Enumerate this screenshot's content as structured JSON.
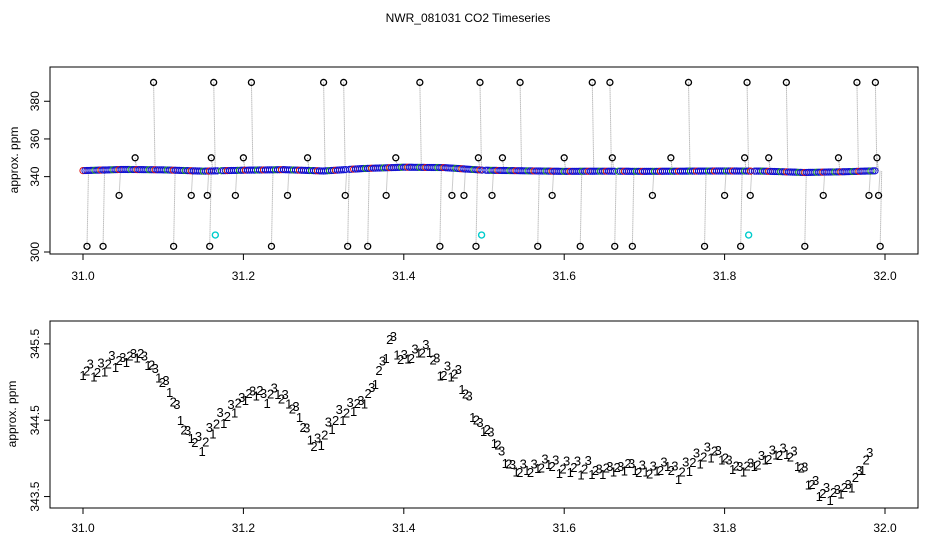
{
  "title": "NWR_081031  CO2 Timeseries",
  "colors": {
    "frame": "#000000",
    "primary": "#1010d0",
    "secondary": "#1aa01a",
    "tertiary": "#dd1010",
    "outlier": "#000000",
    "flag": "#00cccc",
    "connector": "#9a9a9a"
  },
  "chart_data": [
    {
      "type": "scatter",
      "name": "top-panel",
      "ylabel": "approx. ppm",
      "xlim": [
        31.0,
        32.0
      ],
      "ylim": [
        300,
        395
      ],
      "x_ticks": [
        "31.0",
        "31.2",
        "31.4",
        "31.6",
        "31.8",
        "32.0"
      ],
      "y_ticks": [
        "300",
        "340",
        "360",
        "380"
      ],
      "baseline": [
        [
          31.0,
          343.2
        ],
        [
          31.05,
          343.8
        ],
        [
          31.1,
          343.6
        ],
        [
          31.15,
          342.9
        ],
        [
          31.2,
          343.4
        ],
        [
          31.25,
          343.7
        ],
        [
          31.3,
          343.0
        ],
        [
          31.35,
          344.3
        ],
        [
          31.4,
          345.0
        ],
        [
          31.45,
          344.8
        ],
        [
          31.5,
          343.4
        ],
        [
          31.55,
          343.1
        ],
        [
          31.6,
          342.8
        ],
        [
          31.65,
          342.9
        ],
        [
          31.7,
          342.8
        ],
        [
          31.75,
          342.9
        ],
        [
          31.8,
          343.0
        ],
        [
          31.85,
          342.9
        ],
        [
          31.9,
          342.2
        ],
        [
          31.95,
          342.6
        ],
        [
          31.99,
          343.1
        ]
      ],
      "outliers": [
        [
          31.005,
          303
        ],
        [
          31.025,
          303
        ],
        [
          31.045,
          330
        ],
        [
          31.065,
          350
        ],
        [
          31.088,
          390
        ],
        [
          31.113,
          303
        ],
        [
          31.135,
          330
        ],
        [
          31.155,
          330
        ],
        [
          31.158,
          303
        ],
        [
          31.16,
          350
        ],
        [
          31.163,
          390
        ],
        [
          31.19,
          330
        ],
        [
          31.2,
          350
        ],
        [
          31.21,
          390
        ],
        [
          31.235,
          303
        ],
        [
          31.255,
          330
        ],
        [
          31.28,
          350
        ],
        [
          31.3,
          390
        ],
        [
          31.325,
          390
        ],
        [
          31.327,
          330
        ],
        [
          31.33,
          303
        ],
        [
          31.355,
          303
        ],
        [
          31.378,
          330
        ],
        [
          31.39,
          350
        ],
        [
          31.42,
          390
        ],
        [
          31.445,
          303
        ],
        [
          31.46,
          330
        ],
        [
          31.475,
          330
        ],
        [
          31.49,
          303
        ],
        [
          31.493,
          350
        ],
        [
          31.495,
          390
        ],
        [
          31.51,
          330
        ],
        [
          31.523,
          350
        ],
        [
          31.545,
          390
        ],
        [
          31.567,
          303
        ],
        [
          31.585,
          330
        ],
        [
          31.6,
          350
        ],
        [
          31.62,
          303
        ],
        [
          31.635,
          390
        ],
        [
          31.657,
          390
        ],
        [
          31.66,
          350
        ],
        [
          31.663,
          303
        ],
        [
          31.685,
          303
        ],
        [
          31.71,
          330
        ],
        [
          31.733,
          350
        ],
        [
          31.755,
          390
        ],
        [
          31.775,
          303
        ],
        [
          31.8,
          330
        ],
        [
          31.82,
          303
        ],
        [
          31.825,
          350
        ],
        [
          31.828,
          390
        ],
        [
          31.832,
          330
        ],
        [
          31.855,
          350
        ],
        [
          31.877,
          390
        ],
        [
          31.9,
          303
        ],
        [
          31.923,
          330
        ],
        [
          31.942,
          350
        ],
        [
          31.965,
          390
        ],
        [
          31.98,
          330
        ],
        [
          31.988,
          390
        ],
        [
          31.99,
          350
        ],
        [
          31.992,
          330
        ],
        [
          31.994,
          303
        ]
      ],
      "flagged": [
        [
          31.165,
          309
        ],
        [
          31.497,
          309
        ],
        [
          31.83,
          309
        ]
      ]
    },
    {
      "type": "scatter",
      "name": "bottom-panel",
      "ylabel": "approx. ppm",
      "xlim": [
        31.0,
        32.0
      ],
      "ylim": [
        343.35,
        345.8
      ],
      "x_ticks": [
        "31.0",
        "31.2",
        "31.4",
        "31.6",
        "31.8",
        "32.0"
      ],
      "y_ticks": [
        "343.5",
        "344.5",
        "345.5"
      ],
      "marker_labels": [
        "1",
        "2",
        "3"
      ],
      "series": [
        [
          31.0,
          345.22
        ],
        [
          31.01,
          345.2
        ],
        [
          31.02,
          345.18
        ],
        [
          31.03,
          345.28
        ],
        [
          31.04,
          345.3
        ],
        [
          31.05,
          345.35
        ],
        [
          31.06,
          345.38
        ],
        [
          31.07,
          345.42
        ],
        [
          31.08,
          345.32
        ],
        [
          31.09,
          345.18
        ],
        [
          31.1,
          345.08
        ],
        [
          31.11,
          344.9
        ],
        [
          31.12,
          344.6
        ],
        [
          31.13,
          344.35
        ],
        [
          31.14,
          344.28
        ],
        [
          31.15,
          344.22
        ],
        [
          31.16,
          344.42
        ],
        [
          31.17,
          344.55
        ],
        [
          31.18,
          344.6
        ],
        [
          31.19,
          344.72
        ],
        [
          31.2,
          344.85
        ],
        [
          31.21,
          344.9
        ],
        [
          31.22,
          344.92
        ],
        [
          31.23,
          344.8
        ],
        [
          31.24,
          344.95
        ],
        [
          31.25,
          344.85
        ],
        [
          31.26,
          344.75
        ],
        [
          31.27,
          344.6
        ],
        [
          31.28,
          344.35
        ],
        [
          31.29,
          344.2
        ],
        [
          31.3,
          344.35
        ],
        [
          31.31,
          344.5
        ],
        [
          31.32,
          344.6
        ],
        [
          31.33,
          344.65
        ],
        [
          31.34,
          344.75
        ],
        [
          31.35,
          344.8
        ],
        [
          31.36,
          344.95
        ],
        [
          31.37,
          345.2
        ],
        [
          31.38,
          345.45
        ],
        [
          31.385,
          345.7
        ],
        [
          31.39,
          345.45
        ],
        [
          31.4,
          345.35
        ],
        [
          31.41,
          345.4
        ],
        [
          31.42,
          345.45
        ],
        [
          31.43,
          345.48
        ],
        [
          31.44,
          345.3
        ],
        [
          31.45,
          345.15
        ],
        [
          31.46,
          345.2
        ],
        [
          31.47,
          345.1
        ],
        [
          31.48,
          344.8
        ],
        [
          31.49,
          344.55
        ],
        [
          31.5,
          344.45
        ],
        [
          31.51,
          344.35
        ],
        [
          31.52,
          344.15
        ],
        [
          31.53,
          343.95
        ],
        [
          31.54,
          343.9
        ],
        [
          31.55,
          343.92
        ],
        [
          31.56,
          343.9
        ],
        [
          31.57,
          343.95
        ],
        [
          31.58,
          343.98
        ],
        [
          31.59,
          343.95
        ],
        [
          31.6,
          343.92
        ],
        [
          31.61,
          343.95
        ],
        [
          31.62,
          343.9
        ],
        [
          31.63,
          343.92
        ],
        [
          31.64,
          343.88
        ],
        [
          31.65,
          343.9
        ],
        [
          31.66,
          343.92
        ],
        [
          31.67,
          343.9
        ],
        [
          31.68,
          343.95
        ],
        [
          31.69,
          343.92
        ],
        [
          31.7,
          343.9
        ],
        [
          31.71,
          343.88
        ],
        [
          31.72,
          343.92
        ],
        [
          31.73,
          343.95
        ],
        [
          31.74,
          343.85
        ],
        [
          31.75,
          343.9
        ],
        [
          31.76,
          344.0
        ],
        [
          31.77,
          344.05
        ],
        [
          31.78,
          344.1
        ],
        [
          31.79,
          344.15
        ],
        [
          31.8,
          344.05
        ],
        [
          31.81,
          343.95
        ],
        [
          31.82,
          343.9
        ],
        [
          31.83,
          343.92
        ],
        [
          31.84,
          344.0
        ],
        [
          31.85,
          344.05
        ],
        [
          31.86,
          344.1
        ],
        [
          31.87,
          344.12
        ],
        [
          31.88,
          344.1
        ],
        [
          31.89,
          344.05
        ],
        [
          31.9,
          343.85
        ],
        [
          31.91,
          343.7
        ],
        [
          31.92,
          343.6
        ],
        [
          31.93,
          343.55
        ],
        [
          31.94,
          343.62
        ],
        [
          31.95,
          343.65
        ],
        [
          31.96,
          343.72
        ],
        [
          31.97,
          343.9
        ],
        [
          31.98,
          344.05
        ],
        [
          31.985,
          344.2
        ]
      ]
    }
  ]
}
